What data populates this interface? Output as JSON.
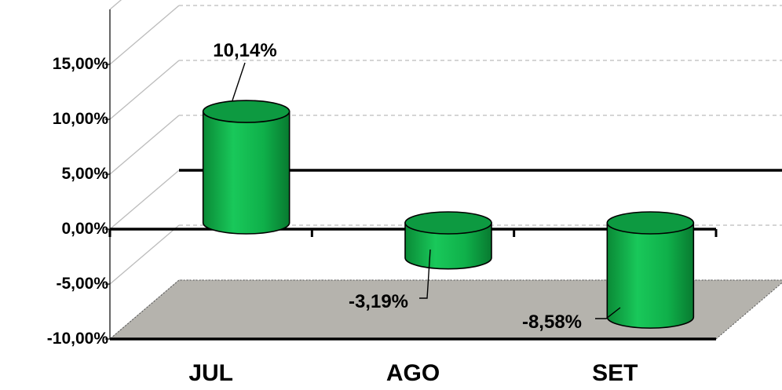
{
  "chart_data": {
    "type": "bar",
    "style": "3d-cylinder",
    "categories": [
      "JUL",
      "AGO",
      "SET"
    ],
    "series": [
      {
        "values": [
          10.14,
          -3.19,
          -8.58
        ]
      }
    ],
    "data_labels": [
      "10,14%",
      "-3,19%",
      "-8,58%"
    ],
    "y_ticks": [
      "15,00%",
      "10,00%",
      "5,00%",
      "0,00%",
      "-5,00%",
      "-10,00%"
    ],
    "y_tick_values": [
      15,
      10,
      5,
      0,
      -5,
      -10
    ],
    "ylim": [
      -10,
      15
    ],
    "title": "",
    "xlabel": "",
    "ylabel": "",
    "grid": true,
    "legend": "none",
    "colors": {
      "bar": "#0fb04a",
      "bar_top": "#0d9a41",
      "floor": "#b5b3ad",
      "grid": "#bcbcbc",
      "axis": "#000000"
    }
  }
}
